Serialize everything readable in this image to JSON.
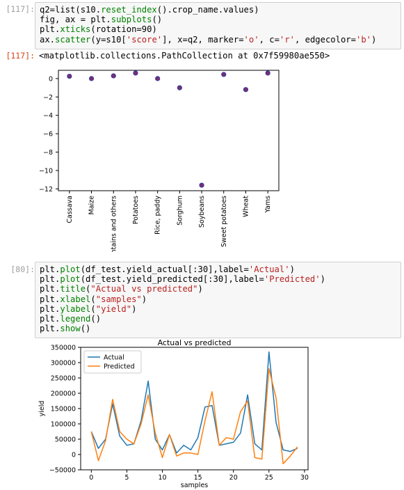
{
  "cells": [
    {
      "prompt_in": "[117]:",
      "prompt_out": "[117]:",
      "code_lines": [
        [
          {
            "t": "q2=list(s10.",
            "c": ""
          },
          {
            "t": "reset_index",
            "c": "kw"
          },
          {
            "t": "().crop_name.values)",
            "c": ""
          }
        ],
        [
          {
            "t": "fig, ax = plt.",
            "c": ""
          },
          {
            "t": "subplots",
            "c": "kw"
          },
          {
            "t": "()",
            "c": ""
          }
        ],
        [
          {
            "t": "plt.",
            "c": ""
          },
          {
            "t": "xticks",
            "c": "kw"
          },
          {
            "t": "(rotation=90)",
            "c": ""
          }
        ],
        [
          {
            "t": "ax.",
            "c": ""
          },
          {
            "t": "scatter",
            "c": "kw"
          },
          {
            "t": "(y=s10[",
            "c": ""
          },
          {
            "t": "'score'",
            "c": "str"
          },
          {
            "t": "], x=q2, marker=",
            "c": ""
          },
          {
            "t": "'o'",
            "c": "str"
          },
          {
            "t": ", c=",
            "c": ""
          },
          {
            "t": "'r'",
            "c": "str"
          },
          {
            "t": ", edgecolor=",
            "c": ""
          },
          {
            "t": "'b'",
            "c": "str"
          },
          {
            "t": ")",
            "c": ""
          }
        ]
      ],
      "output_text": "<matplotlib.collections.PathCollection at 0x7f59980ae550>"
    },
    {
      "prompt_in": "[80]:",
      "code_lines": [
        [
          {
            "t": "plt.",
            "c": ""
          },
          {
            "t": "plot",
            "c": "kw"
          },
          {
            "t": "(df_test.yield_actual[:30],label=",
            "c": ""
          },
          {
            "t": "'Actual'",
            "c": "str"
          },
          {
            "t": ")",
            "c": ""
          }
        ],
        [
          {
            "t": "plt.",
            "c": ""
          },
          {
            "t": "plot",
            "c": "kw"
          },
          {
            "t": "(df_test.yield_predicted[:30],label=",
            "c": ""
          },
          {
            "t": "'Predicted'",
            "c": "str"
          },
          {
            "t": ")",
            "c": ""
          }
        ],
        [
          {
            "t": "plt.",
            "c": ""
          },
          {
            "t": "title",
            "c": "kw"
          },
          {
            "t": "(",
            "c": ""
          },
          {
            "t": "\"Actual vs predicted\"",
            "c": "str"
          },
          {
            "t": ")",
            "c": ""
          }
        ],
        [
          {
            "t": "plt.",
            "c": ""
          },
          {
            "t": "xlabel",
            "c": "kw"
          },
          {
            "t": "(",
            "c": ""
          },
          {
            "t": "\"samples\"",
            "c": "str"
          },
          {
            "t": ")",
            "c": ""
          }
        ],
        [
          {
            "t": "plt.",
            "c": ""
          },
          {
            "t": "ylabel",
            "c": "kw"
          },
          {
            "t": "(",
            "c": ""
          },
          {
            "t": "\"yield\"",
            "c": "str"
          },
          {
            "t": ")",
            "c": ""
          }
        ],
        [
          {
            "t": "plt.",
            "c": ""
          },
          {
            "t": "legend",
            "c": "kw"
          },
          {
            "t": "()",
            "c": ""
          }
        ],
        [
          {
            "t": "plt.",
            "c": ""
          },
          {
            "t": "show",
            "c": "kw"
          },
          {
            "t": "()",
            "c": ""
          }
        ]
      ]
    }
  ],
  "colors": {
    "scatter_fill": "#7b2d6e",
    "scatter_edge": "#1f3fb4",
    "actual": "#1f77b4",
    "predicted": "#ff7f0e"
  },
  "chart_data": [
    {
      "type": "scatter",
      "title": "",
      "xlabel": "",
      "ylabel": "",
      "categories": [
        "Cassava",
        "Maize",
        "Plantains and others",
        "Potatoes",
        "Rice, paddy",
        "Sorghum",
        "Soybeans",
        "Sweet potatoes",
        "Wheat",
        "Yams"
      ],
      "values": [
        0.25,
        0.0,
        0.3,
        0.6,
        0.0,
        -1.0,
        -11.6,
        0.45,
        -1.2,
        0.6
      ],
      "yticks": [
        0,
        -2,
        -4,
        -6,
        -8,
        -10,
        -12
      ],
      "ylim": [
        -12.2,
        0.9
      ],
      "grid": false
    },
    {
      "type": "line",
      "title": "Actual vs predicted",
      "xlabel": "samples",
      "ylabel": "yield",
      "legend_position": "top-left",
      "xlim": [
        -1.5,
        30.5
      ],
      "ylim": [
        -50000,
        350000
      ],
      "xticks": [
        0,
        5,
        10,
        15,
        20,
        25,
        30
      ],
      "yticks": [
        -50000,
        0,
        50000,
        100000,
        150000,
        200000,
        250000,
        300000,
        350000
      ],
      "grid": false,
      "series": [
        {
          "name": "Actual",
          "values": [
            75000,
            20000,
            50000,
            165000,
            60000,
            30000,
            35000,
            110000,
            240000,
            50000,
            15000,
            65000,
            5000,
            30000,
            15000,
            55000,
            155000,
            160000,
            30000,
            35000,
            40000,
            70000,
            195000,
            35000,
            15000,
            335000,
            105000,
            15000,
            10000,
            20000
          ]
        },
        {
          "name": "Predicted",
          "values": [
            75000,
            -20000,
            45000,
            180000,
            75000,
            50000,
            35000,
            100000,
            195000,
            70000,
            -10000,
            65000,
            -5000,
            5000,
            5000,
            0,
            110000,
            205000,
            30000,
            55000,
            50000,
            140000,
            175000,
            -10000,
            -15000,
            280000,
            185000,
            -30000,
            -5000,
            25000
          ]
        }
      ]
    }
  ]
}
